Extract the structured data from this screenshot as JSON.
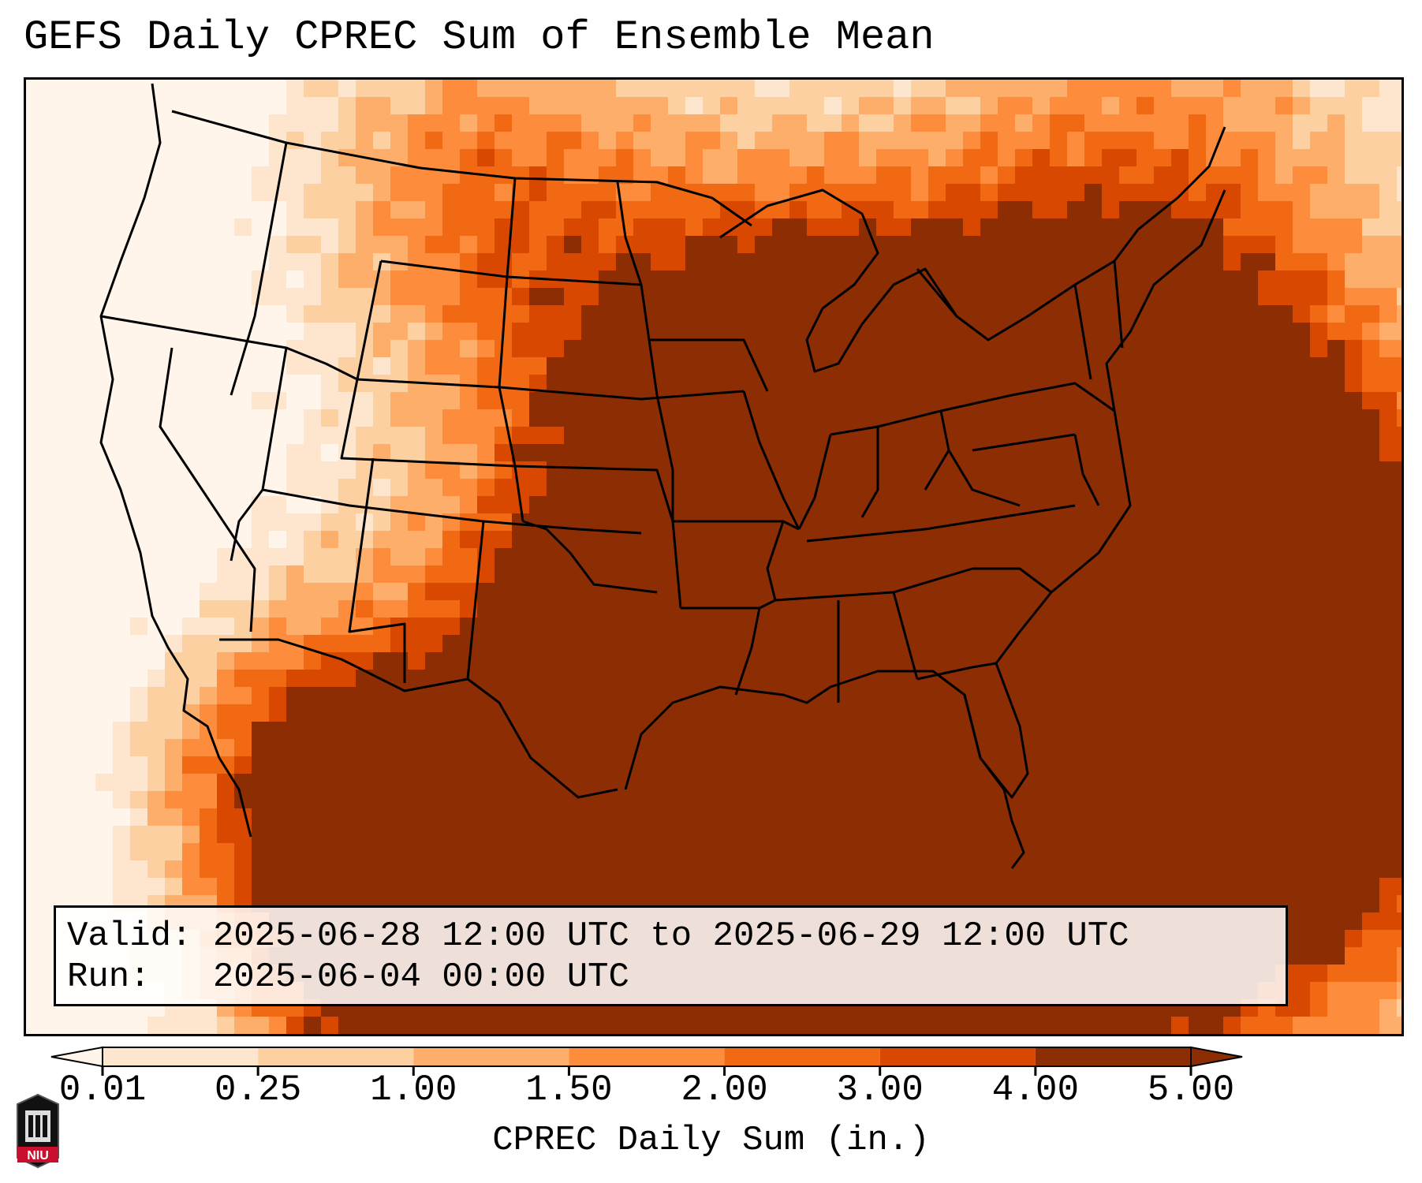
{
  "title": "GEFS Daily CPREC Sum of Ensemble Mean",
  "info": {
    "valid_label": "Valid:",
    "valid_value": "2025-06-28 12:00 UTC to 2025-06-29 12:00 UTC",
    "run_label": "Run:",
    "run_value": "2025-06-04 00:00 UTC"
  },
  "colorbar": {
    "label": "CPREC Daily Sum (in.)",
    "ticks": [
      "0.01",
      "0.25",
      "1.00",
      "1.50",
      "2.00",
      "3.00",
      "4.00",
      "5.00"
    ],
    "colors": [
      "#fff5eb",
      "#fee6ce",
      "#fdd0a2",
      "#fdae6b",
      "#fd8d3c",
      "#f16913",
      "#d94801",
      "#8c2d04"
    ]
  },
  "logo": {
    "text": "NIU",
    "icon": "niu-logo-icon"
  },
  "map": {
    "projection": "lambert-conformal",
    "region": "CONUS",
    "palette": "oranges"
  }
}
